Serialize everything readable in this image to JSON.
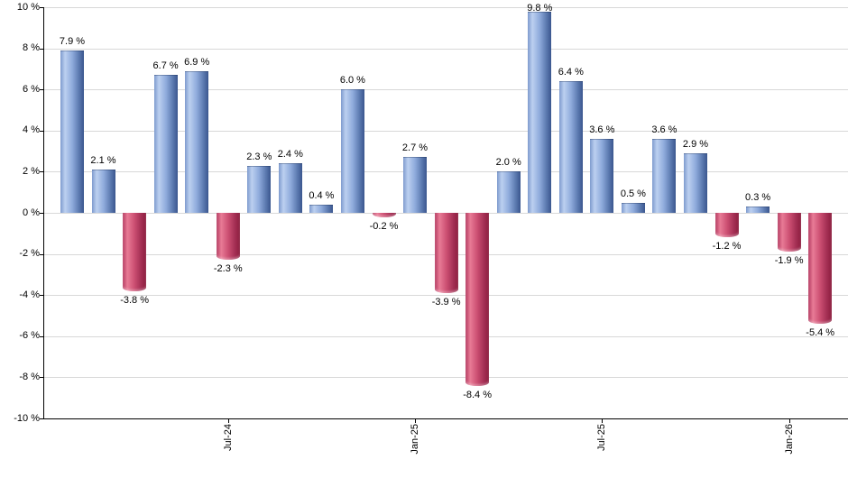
{
  "chart_data": {
    "type": "bar",
    "title": "",
    "xlabel": "",
    "ylabel": "",
    "unit": "%",
    "ylim": [
      -10,
      10
    ],
    "ytick_step": 2,
    "grid": true,
    "legend": false,
    "values": [
      7.9,
      2.1,
      -3.8,
      6.7,
      6.9,
      -2.3,
      2.3,
      2.4,
      0.4,
      6.0,
      -0.2,
      2.7,
      -3.9,
      -8.4,
      2.0,
      9.8,
      6.4,
      3.6,
      0.5,
      3.6,
      2.9,
      -1.2,
      0.3,
      -1.9,
      -5.4
    ],
    "bar_labels": [
      "7.9 %",
      "2.1 %",
      "-3.8 %",
      "6.7 %",
      "6.9 %",
      "-2.3 %",
      "2.3 %",
      "2.4 %",
      "0.4 %",
      "6.0 %",
      "-0.2 %",
      "2.7 %",
      "-3.9 %",
      "-8.4 %",
      "2.0 %",
      "9.8 %",
      "6.4 %",
      "3.6 %",
      "0.5 %",
      "3.6 %",
      "2.9 %",
      "-1.2 %",
      "0.3 %",
      "-1.9 %",
      "-5.4 %"
    ],
    "y_tick_labels": [
      "10 %",
      "8 %",
      "6 %",
      "4 %",
      "2 %",
      "0 %",
      "-2 %",
      "-4 %",
      "-6 %",
      "-8 %",
      "-10 %"
    ],
    "x_axis_ticks": [
      {
        "index": 5,
        "label": "Jul-24"
      },
      {
        "index": 11,
        "label": "Jan-25"
      },
      {
        "index": 17,
        "label": "Jul-25"
      },
      {
        "index": 23,
        "label": "Jan-26"
      }
    ],
    "colors": {
      "positive_main": "#7e9bce",
      "positive_highlight": "#bcd0f0",
      "positive_dark": "#3a568e",
      "negative_main": "#cc4f72",
      "negative_highlight": "#e87b96",
      "negative_dark": "#8c1d3e",
      "gridline": "#d8d8d8",
      "axis": "#000000",
      "label_text": "#000000"
    }
  }
}
